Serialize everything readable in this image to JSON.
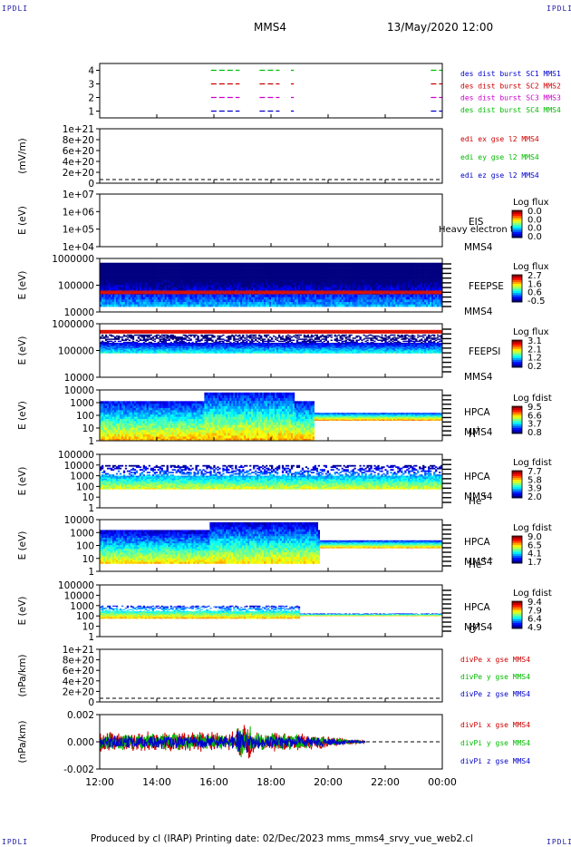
{
  "corner_tag": "IPDLI",
  "header": {
    "spacecraft": "MMS4",
    "date_time": "13/May/2020 12:00"
  },
  "footer": {
    "text": "Produced by cl (IRAP)    Printing date: 02/Dec/2023    mms_mms4_srvy_vue_web2.cl"
  },
  "time_axis": {
    "ticks": [
      "12:00",
      "14:00",
      "16:00",
      "18:00",
      "20:00",
      "22:00",
      "00:00"
    ],
    "range_hours": [
      0,
      12
    ]
  },
  "chart_data": [
    {
      "type": "line",
      "id": "burst",
      "yticks": [
        "1",
        "2",
        "3",
        "4"
      ],
      "legend": [
        {
          "label": "des dist burst SC1 MMS1",
          "color": "#0000cc"
        },
        {
          "label": "des dist burst SC2 MMS2",
          "color": "#cc0000"
        },
        {
          "label": "des dist burst SC3 MMS3",
          "color": "#cc00cc"
        },
        {
          "label": "des dist burst SC4 MMS4",
          "color": "#00bb00"
        }
      ],
      "series": [
        {
          "name": "des dist burst SC4 MMS4",
          "level": 4,
          "intervals_h": [
            [
              3.9,
              4.9
            ],
            [
              5.6,
              6.3
            ],
            [
              6.7,
              6.8
            ],
            [
              11.6,
              12.0
            ]
          ]
        },
        {
          "name": "des dist burst SC2 MMS2",
          "level": 3,
          "intervals_h": [
            [
              3.9,
              4.9
            ],
            [
              5.6,
              6.3
            ],
            [
              6.7,
              6.8
            ],
            [
              11.6,
              12.0
            ]
          ]
        },
        {
          "name": "des dist burst SC3 MMS3",
          "level": 2,
          "intervals_h": [
            [
              3.9,
              4.9
            ],
            [
              5.6,
              6.3
            ],
            [
              6.7,
              6.8
            ],
            [
              11.6,
              12.0
            ]
          ]
        },
        {
          "name": "des dist burst SC1 MMS1",
          "level": 1,
          "intervals_h": [
            [
              3.9,
              4.9
            ],
            [
              5.6,
              6.3
            ],
            [
              6.7,
              6.8
            ],
            [
              11.6,
              12.0
            ]
          ]
        }
      ]
    },
    {
      "type": "line",
      "id": "edi",
      "ylabel": "(mV/m)",
      "yticks": [
        "0",
        "2e+20",
        "4e+20",
        "6e+20",
        "8e+20",
        "1e+21"
      ],
      "legend": [
        {
          "label": "edi ex gse l2 MMS4",
          "color": "#cc0000"
        },
        {
          "label": "edi ey gse l2 MMS4",
          "color": "#00bb00"
        },
        {
          "label": "edi ez gse l2 MMS4",
          "color": "#0000cc"
        }
      ],
      "series": []
    },
    {
      "type": "heatmap",
      "id": "eis",
      "ylabel": "E (eV)",
      "yticks": [
        "1e+04",
        "1e+05",
        "1e+06",
        "1e+07"
      ],
      "labels": [
        "EIS",
        "MMS4"
      ],
      "extra_text": "Heavy electron to",
      "cbar_title": "Log flux",
      "cbar_ticks": [
        "0.0",
        "0.0",
        "0.0",
        "0.0"
      ],
      "data": "none"
    },
    {
      "type": "heatmap",
      "id": "feepse",
      "ylabel": "E (eV)",
      "yticks": [
        "10000",
        "100000",
        "1000000"
      ],
      "labels": [
        "FEEPSE",
        "MMS4"
      ],
      "cbar_title": "Log flux",
      "cbar_ticks": [
        "2.7",
        "1.6",
        "0.6",
        "-0.5"
      ],
      "band_log_energy": [
        4.5,
        6.0
      ]
    },
    {
      "type": "heatmap",
      "id": "feepsi",
      "ylabel": "E (eV)",
      "yticks": [
        "10000",
        "100000",
        "1000000"
      ],
      "labels": [
        "FEEPSI",
        "MMS4"
      ],
      "cbar_title": "Log flux",
      "cbar_ticks": [
        "3.1",
        "2.1",
        "1.2",
        "0.2"
      ],
      "band_log_energy": [
        4.8,
        5.7
      ]
    },
    {
      "type": "heatmap",
      "id": "hpca_h",
      "ylabel": "E (eV)",
      "yticks": [
        "1",
        "10",
        "100",
        "1000",
        "10000"
      ],
      "labels": [
        "HPCA",
        "MMS4"
      ],
      "species": "H",
      "species_sup": "+",
      "cbar_title": "Log fdist",
      "cbar_ticks": [
        "9.5",
        "6.6",
        "3.7",
        "0.8"
      ]
    },
    {
      "type": "heatmap",
      "id": "hpca_he",
      "ylabel": "E (eV)",
      "yticks": [
        "1",
        "10",
        "100",
        "1000",
        "10000",
        "100000"
      ],
      "labels": [
        "HPCA",
        "MMS4"
      ],
      "species": "He",
      "species_sup": "+",
      "cbar_title": "Log fdist",
      "cbar_ticks": [
        "7.7",
        "5.8",
        "3.9",
        "2.0"
      ]
    },
    {
      "type": "heatmap",
      "id": "hpca_hepp",
      "ylabel": "E (eV)",
      "yticks": [
        "1",
        "10",
        "100",
        "1000",
        "10000"
      ],
      "labels": [
        "HPCA",
        "MMS4"
      ],
      "species": "He",
      "species_sup": "++",
      "cbar_title": "Log fdist",
      "cbar_ticks": [
        "9.0",
        "6.5",
        "4.1",
        "1.7"
      ]
    },
    {
      "type": "heatmap",
      "id": "hpca_o",
      "ylabel": "E (eV)",
      "yticks": [
        "1",
        "10",
        "100",
        "1000",
        "10000",
        "100000"
      ],
      "labels": [
        "HPCA",
        "MMS4"
      ],
      "species": "O",
      "species_sup": "+",
      "cbar_title": "Log fdist",
      "cbar_ticks": [
        "9.4",
        "7.9",
        "6.4",
        "4.9"
      ]
    },
    {
      "type": "line",
      "id": "divpe",
      "ylabel": "(nPa/km)",
      "yticks": [
        "0",
        "2e+20",
        "4e+20",
        "6e+20",
        "8e+20",
        "1e+21"
      ],
      "legend": [
        {
          "label": "divPe x gse MMS4",
          "color": "#cc0000"
        },
        {
          "label": "divPe y gse MMS4",
          "color": "#00bb00"
        },
        {
          "label": "divPe z gse MMS4",
          "color": "#0000cc"
        }
      ],
      "series": []
    },
    {
      "type": "line",
      "id": "divpi",
      "ylabel": "(nPa/km)",
      "yticks": [
        "-0.002",
        "0.000",
        "0.002"
      ],
      "ylim": [
        -0.003,
        0.003
      ],
      "legend": [
        {
          "label": "divPi x gse MMS4",
          "color": "#cc0000"
        },
        {
          "label": "divPi y gse MMS4",
          "color": "#00bb00"
        },
        {
          "label": "divPi z gse MMS4",
          "color": "#0000cc"
        }
      ],
      "series": [
        {
          "name": "divPi x gse MMS4",
          "color": "#cc0000",
          "amplitude": 0.0015,
          "range_h": [
            0,
            9.3
          ]
        },
        {
          "name": "divPi y gse MMS4",
          "color": "#00bb00",
          "amplitude": 0.0012,
          "range_h": [
            0,
            9.3
          ]
        },
        {
          "name": "divPi z gse MMS4",
          "color": "#0000cc",
          "amplitude": 0.001,
          "range_h": [
            0,
            9.3
          ]
        }
      ]
    }
  ]
}
